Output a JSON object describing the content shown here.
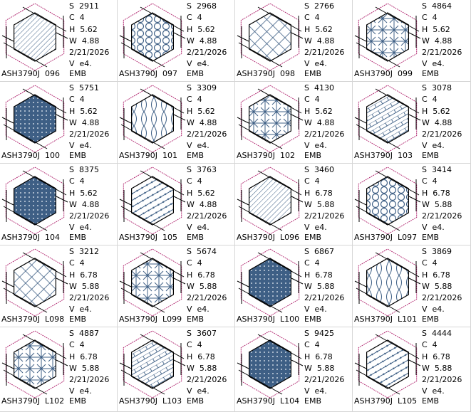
{
  "colors": {
    "outline": "#b0246e",
    "fill": "#3e5f85",
    "frame": "#000000"
  },
  "designs": [
    {
      "name": "ASH3790J  096",
      "s": "S  2911",
      "c": "C  4",
      "h": "H  5.62",
      "w": "W  4.88",
      "date": "2/21/2026",
      "v": "V  e4.",
      "ext": "EMB",
      "pattern": "hatch"
    },
    {
      "name": "ASH3790J  097",
      "s": "S  2968",
      "c": "C  4",
      "h": "H  5.62",
      "w": "W  4.88",
      "date": "2/21/2026",
      "v": "V  e4.",
      "ext": "EMB",
      "pattern": "honeycomb"
    },
    {
      "name": "ASH3790J  098",
      "s": "S  2766",
      "c": "C  4",
      "h": "H  5.62",
      "w": "W  4.88",
      "date": "2/21/2026",
      "v": "V  e4.",
      "ext": "EMB",
      "pattern": "lattice"
    },
    {
      "name": "ASH3790J  099",
      "s": "S  4864",
      "c": "C  4",
      "h": "H  5.62",
      "w": "W  4.88",
      "date": "2/21/2026",
      "v": "V  e4.",
      "ext": "EMB",
      "pattern": "floral"
    },
    {
      "name": "ASH3790J  100",
      "s": "S  5751",
      "c": "C  4",
      "h": "H  5.62",
      "w": "W  4.88",
      "date": "2/21/2026",
      "v": "V  e4.",
      "ext": "EMB",
      "pattern": "dense"
    },
    {
      "name": "ASH3790J  101",
      "s": "S  3309",
      "c": "C  4",
      "h": "H  5.62",
      "w": "W  4.88",
      "date": "2/21/2026",
      "v": "V  e4.",
      "ext": "EMB",
      "pattern": "ogee"
    },
    {
      "name": "ASH3790J  102",
      "s": "S  4130",
      "c": "C  4",
      "h": "H  5.62",
      "w": "W  4.88",
      "date": "2/21/2026",
      "v": "V  e4.",
      "ext": "EMB",
      "pattern": "floral"
    },
    {
      "name": "ASH3790J  103",
      "s": "S  3078",
      "c": "C  4",
      "h": "H  5.62",
      "w": "W  4.88",
      "date": "2/21/2026",
      "v": "V  e4.",
      "ext": "EMB",
      "pattern": "weave"
    },
    {
      "name": "ASH3790J  104",
      "s": "S  8375",
      "c": "C  4",
      "h": "H  5.62",
      "w": "W  4.88",
      "date": "2/21/2026",
      "v": "V  e4.",
      "ext": "EMB",
      "pattern": "dense"
    },
    {
      "name": "ASH3790J  105",
      "s": "S  3763",
      "c": "C  4",
      "h": "H  5.62",
      "w": "W  4.88",
      "date": "2/21/2026",
      "v": "V  e4.",
      "ext": "EMB",
      "pattern": "bamboo"
    },
    {
      "name": "ASH3790J  L096",
      "s": "S  3460",
      "c": "C  4",
      "h": "H  6.78",
      "w": "W  5.88",
      "date": "2/21/2026",
      "v": "V  e4.",
      "ext": "EMB",
      "pattern": "hatch"
    },
    {
      "name": "ASH3790J  L097",
      "s": "S  3414",
      "c": "C  4",
      "h": "H  6.78",
      "w": "W  5.88",
      "date": "2/21/2026",
      "v": "V  e4.",
      "ext": "EMB",
      "pattern": "honeycomb"
    },
    {
      "name": "ASH3790J  L098",
      "s": "S  3212",
      "c": "C  4",
      "h": "H  6.78",
      "w": "W  5.88",
      "date": "2/21/2026",
      "v": "V  e4.",
      "ext": "EMB",
      "pattern": "lattice"
    },
    {
      "name": "ASH3790J  L099",
      "s": "S  5674",
      "c": "C  4",
      "h": "H  6.78",
      "w": "W  5.88",
      "date": "2/21/2026",
      "v": "V  e4.",
      "ext": "EMB",
      "pattern": "floral"
    },
    {
      "name": "ASH3790J  L100",
      "s": "S  6867",
      "c": "C  4",
      "h": "H  6.78",
      "w": "W  5.88",
      "date": "2/21/2026",
      "v": "V  e4.",
      "ext": "EMB",
      "pattern": "dense"
    },
    {
      "name": "ASH3790J  L101",
      "s": "S  3869",
      "c": "C  4",
      "h": "H  6.78",
      "w": "W  5.88",
      "date": "2/21/2026",
      "v": "V  e4.",
      "ext": "EMB",
      "pattern": "ogee"
    },
    {
      "name": "ASH3790J  L102",
      "s": "S  4887",
      "c": "C  4",
      "h": "H  6.78",
      "w": "W  5.88",
      "date": "2/21/2026",
      "v": "V  e4.",
      "ext": "EMB",
      "pattern": "floral"
    },
    {
      "name": "ASH3790J  L103",
      "s": "S  3607",
      "c": "C  4",
      "h": "H  6.78",
      "w": "W  5.88",
      "date": "2/21/2026",
      "v": "V  e4.",
      "ext": "EMB",
      "pattern": "weave"
    },
    {
      "name": "ASH3790J  L104",
      "s": "S  9425",
      "c": "C  4",
      "h": "H  6.78",
      "w": "W  5.88",
      "date": "2/21/2026",
      "v": "V  e4.",
      "ext": "EMB",
      "pattern": "dense"
    },
    {
      "name": "ASH3790J  L105",
      "s": "S  4444",
      "c": "C  4",
      "h": "H  6.78",
      "w": "W  5.88",
      "date": "2/21/2026",
      "v": "V  e4.",
      "ext": "EMB",
      "pattern": "bamboo"
    }
  ]
}
